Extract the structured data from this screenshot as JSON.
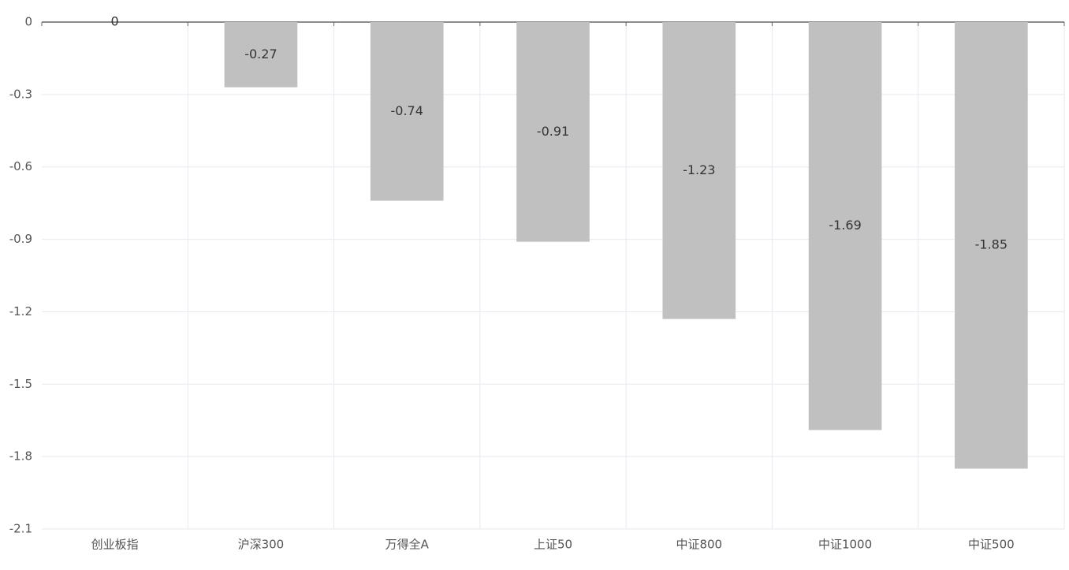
{
  "chart_data": {
    "type": "bar",
    "categories": [
      "创业板指",
      "沪深300",
      "万得全A",
      "上证50",
      "中证800",
      "中证1000",
      "中证500"
    ],
    "values": [
      0,
      -0.27,
      -0.74,
      -0.91,
      -1.23,
      -1.69,
      -1.85
    ],
    "color": "#c0c0c0",
    "ylim": [
      -2.1,
      0
    ],
    "yticks": [
      0,
      -0.3,
      -0.6,
      -0.9,
      -1.2,
      -1.5,
      -1.8,
      -2.1
    ],
    "grid": true
  }
}
